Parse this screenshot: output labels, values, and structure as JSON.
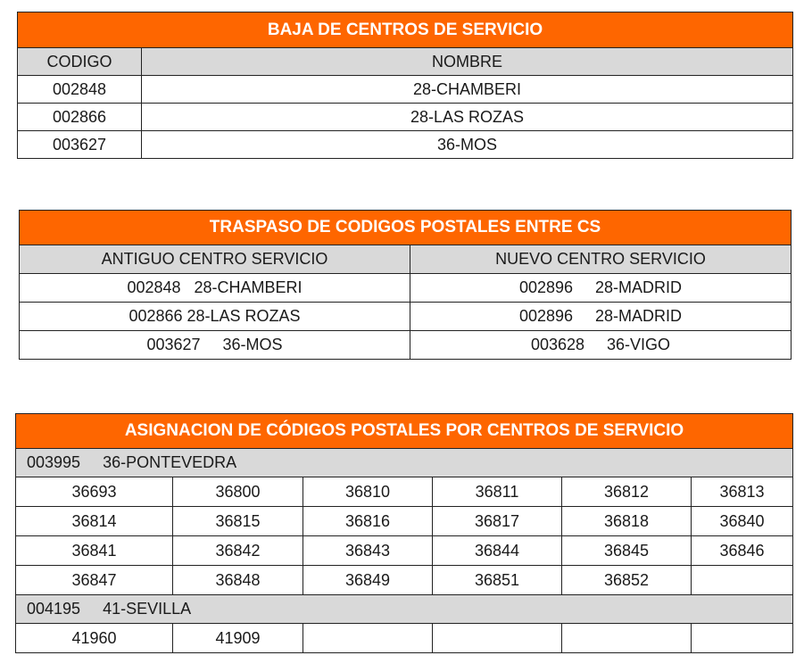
{
  "baja": {
    "title": "BAJA DE CENTROS DE SERVICIO",
    "headers": [
      "CODIGO",
      "NOMBRE"
    ],
    "rows": [
      [
        "002848",
        "28-CHAMBERI"
      ],
      [
        "002866",
        "28-LAS ROZAS"
      ],
      [
        "003627",
        "36-MOS"
      ]
    ]
  },
  "traspaso": {
    "title": "TRASPASO DE CODIGOS POSTALES ENTRE CS",
    "headers": [
      "ANTIGUO CENTRO SERVICIO",
      "NUEVO CENTRO SERVICIO"
    ],
    "rows": [
      [
        "002848   28-CHAMBERI",
        "002896     28-MADRID"
      ],
      [
        "002866 28-LAS ROZAS",
        "002896     28-MADRID"
      ],
      [
        "003627     36-MOS",
        "003628     36-VIGO"
      ]
    ]
  },
  "asignacion": {
    "title": "ASIGNACION DE CÓDIGOS POSTALES POR CENTROS DE SERVICIO",
    "groups": [
      {
        "label": "003995     36-PONTEVEDRA",
        "rows": [
          [
            "36693",
            "36800",
            "36810",
            "36811",
            "36812",
            "36813"
          ],
          [
            "36814",
            "36815",
            "36816",
            "36817",
            "36818",
            "36840"
          ],
          [
            "36841",
            "36842",
            "36843",
            "36844",
            "36845",
            "36846"
          ],
          [
            "36847",
            "36848",
            "36849",
            "36851",
            "36852",
            ""
          ]
        ]
      },
      {
        "label": "004195     41-SEVILLA",
        "rows": [
          [
            "41960",
            "41909",
            "",
            "",
            "",
            ""
          ]
        ]
      }
    ]
  }
}
